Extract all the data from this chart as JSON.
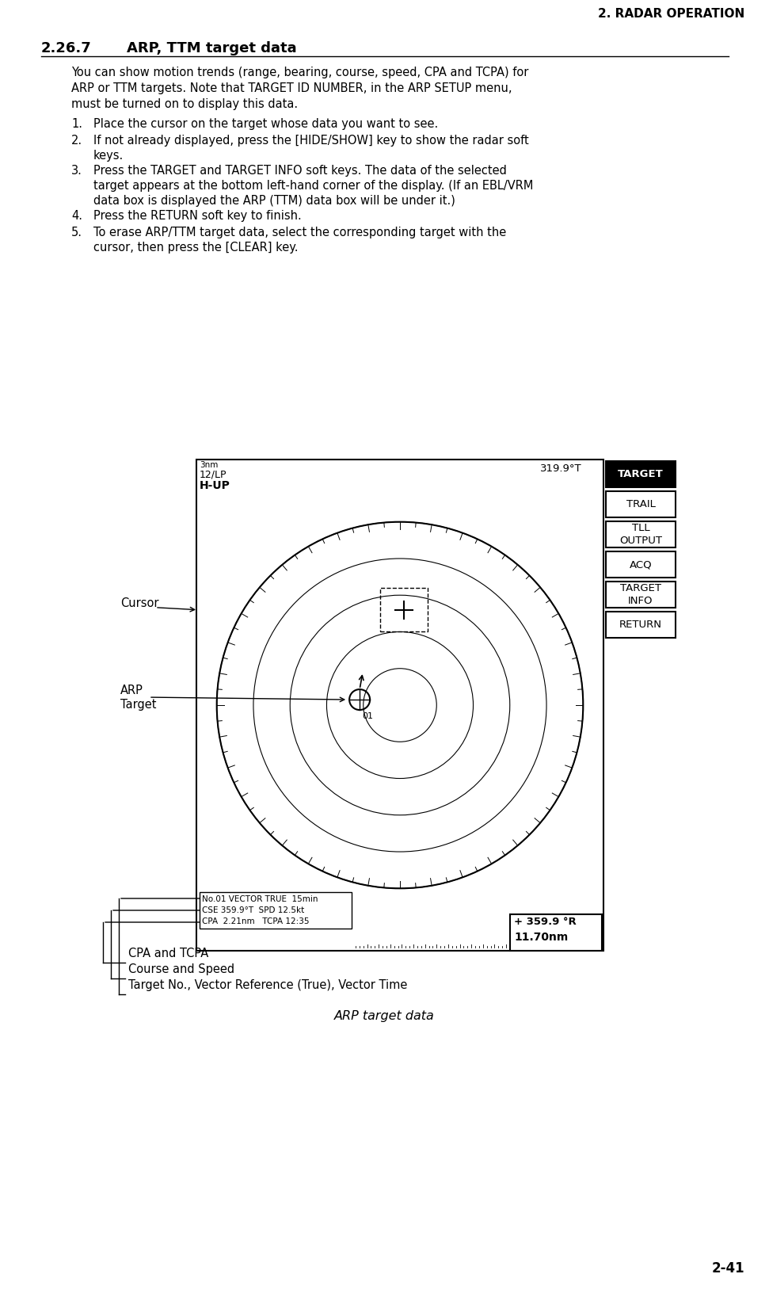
{
  "page_header": "2. RADAR OPERATION",
  "section_number": "2.26.7",
  "section_title": "ARP, TTM target data",
  "intro_lines": [
    "You can show motion trends (range, bearing, course, speed, CPA and TCPA) for",
    "ARP or TTM targets. Note that TARGET ID NUMBER, in the ARP SETUP menu,",
    "must be turned on to display this data."
  ],
  "steps_wrapped": [
    [
      "Place the cursor on the target whose data you want to see."
    ],
    [
      "If not already displayed, press the [HIDE/SHOW] key to show the radar soft",
      "keys."
    ],
    [
      "Press the TARGET and TARGET INFO soft keys. The data of the selected",
      "target appears at the bottom left-hand corner of the display. (If an EBL/VRM",
      "data box is displayed the ARP (TTM) data box will be under it.)"
    ],
    [
      "Press the RETURN soft key to finish."
    ],
    [
      "To erase ARP/TTM target data, select the corresponding target with the",
      "cursor, then press the [CLEAR] key."
    ]
  ],
  "page_number": "2-41",
  "figure_caption": "ARP target data",
  "radar_display": {
    "top_left_small": "3nm",
    "top_left_text1": "12/LP",
    "top_left_text2": "H-UP",
    "top_right_text": "319.9°T",
    "bottom_right_line1": "+ 359.9 °R",
    "bottom_right_line2": "11.70nm",
    "data_box_line1": "No.01 VECTOR TRUE  15min",
    "data_box_line2": "CSE 359.9°T  SPD 12.5kt",
    "data_box_line3": "CPA  2.21nm   TCPA 12:35",
    "label_cursor": "Cursor",
    "label_arp": "ARP",
    "label_target": "Target"
  },
  "softkeys": [
    "TARGET",
    "TRAIL",
    "TLL\nOUTPUT",
    "ACQ",
    "TARGET\nINFO",
    "RETURN"
  ],
  "annotations": [
    "CPA and TCPA",
    "Course and Speed",
    "Target No., Vector Reference (True), Vector Time"
  ],
  "bg_color": "#ffffff"
}
